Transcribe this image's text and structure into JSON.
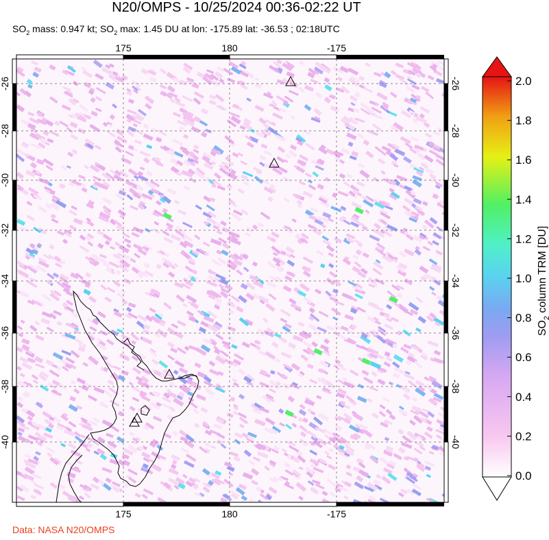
{
  "title": "N20/OMPS - 10/25/2024 00:36-02:22 UT",
  "subtitle": {
    "mass_prefix": "SO",
    "mass_sub": "2",
    "mass_text": " mass: 0.947 kt; SO",
    "max_sub": "2",
    "max_text": " max: 1.45 DU at lon: -175.89 lat: -36.53 ; 02:18UTC"
  },
  "credit": "Data: NASA N20/OMPS",
  "map": {
    "lon_ticks": [
      "175",
      "180",
      "-175"
    ],
    "lat_ticks": [
      "-26",
      "-28",
      "-30",
      "-32",
      "-34",
      "-36",
      "-38",
      "-40"
    ],
    "lon_range": [
      170,
      180,
      190
    ],
    "volcano_icon": "triangle-outline-icon"
  },
  "colorbar": {
    "label": "SO2 column TRM [DU]",
    "label_main": "SO",
    "label_sub": "2",
    "label_rest": " column TRM [DU]",
    "ticks": [
      "2.0",
      "1.8",
      "1.6",
      "1.4",
      "1.2",
      "1.0",
      "0.8",
      "0.6",
      "0.4",
      "0.2",
      "0.0"
    ],
    "stops": [
      "#ffffff",
      "#f8c8f0",
      "#c8a0f0",
      "#8c96f0",
      "#64b4f0",
      "#5af0f0",
      "#50f064",
      "#e6f014",
      "#f0a014",
      "#f03c14",
      "#e61414"
    ]
  }
}
